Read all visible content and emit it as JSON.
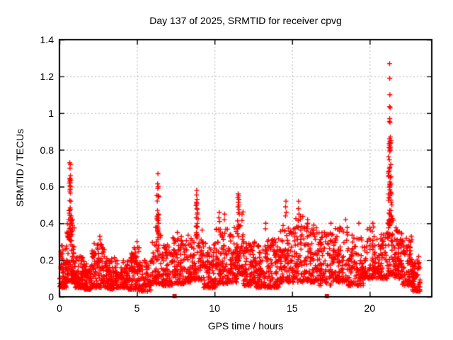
{
  "chart_data": {
    "type": "scatter",
    "title": "Day 137 of 2025, SRMTID for receiver cpvg",
    "xlabel": "GPS time / hours",
    "ylabel": "SRMTID / TECUs",
    "xlim": [
      0,
      24
    ],
    "ylim": [
      0,
      1.4
    ],
    "xtick_values": [
      0,
      5,
      10,
      15,
      20
    ],
    "xtick_labels": [
      "0",
      "5",
      "10",
      "15",
      "20"
    ],
    "ytick_values": [
      0,
      0.2,
      0.4,
      0.6,
      0.8,
      1.0,
      1.2,
      1.4
    ],
    "ytick_labels": [
      "0",
      "0.2",
      "0.4",
      "0.6",
      "0.8",
      "1",
      "1.2",
      "1.4"
    ],
    "grid": true,
    "grid_style": "dotted",
    "legend": null,
    "colors": {
      "marker": "#ff0000",
      "grid": "#b3b3b3",
      "axis": "#000000",
      "text": "#000000",
      "background": "#ffffff"
    },
    "seed": 137,
    "series": [
      {
        "name": "srmtid_plus_markers",
        "marker": "plus",
        "marker_size": 7,
        "clusters": [
          [
            0.02,
            0.45,
            70,
            0.05,
            0.28
          ],
          [
            0.45,
            0.95,
            85,
            0.08,
            0.42
          ],
          [
            0.62,
            0.78,
            22,
            0.3,
            0.62
          ],
          [
            0.95,
            1.6,
            90,
            0.05,
            0.22
          ],
          [
            1.6,
            2.1,
            70,
            0.04,
            0.18
          ],
          [
            2.1,
            2.95,
            100,
            0.05,
            0.3
          ],
          [
            2.95,
            3.6,
            80,
            0.04,
            0.22
          ],
          [
            3.6,
            4.4,
            90,
            0.05,
            0.2
          ],
          [
            4.4,
            5.15,
            90,
            0.04,
            0.27
          ],
          [
            5.15,
            5.9,
            70,
            0.03,
            0.2
          ],
          [
            5.9,
            6.55,
            60,
            0.07,
            0.38
          ],
          [
            6.28,
            6.42,
            16,
            0.3,
            0.56
          ],
          [
            6.55,
            7.3,
            80,
            0.06,
            0.3
          ],
          [
            7.3,
            8.15,
            90,
            0.07,
            0.33
          ],
          [
            8.15,
            8.7,
            60,
            0.08,
            0.35
          ],
          [
            8.7,
            9.3,
            60,
            0.09,
            0.44
          ],
          [
            8.8,
            8.92,
            13,
            0.33,
            0.52
          ],
          [
            9.3,
            10.1,
            90,
            0.05,
            0.3
          ],
          [
            10.1,
            10.9,
            90,
            0.07,
            0.38
          ],
          [
            10.9,
            11.45,
            70,
            0.08,
            0.4
          ],
          [
            11.45,
            11.85,
            55,
            0.12,
            0.48
          ],
          [
            11.85,
            12.6,
            90,
            0.06,
            0.3
          ],
          [
            12.6,
            13.4,
            90,
            0.05,
            0.28
          ],
          [
            13.4,
            14.2,
            90,
            0.05,
            0.32
          ],
          [
            14.2,
            14.9,
            80,
            0.08,
            0.4
          ],
          [
            14.9,
            15.7,
            80,
            0.08,
            0.44
          ],
          [
            15.7,
            16.6,
            100,
            0.08,
            0.4
          ],
          [
            16.6,
            17.6,
            100,
            0.06,
            0.35
          ],
          [
            17.6,
            18.6,
            100,
            0.08,
            0.38
          ],
          [
            18.6,
            19.6,
            100,
            0.06,
            0.35
          ],
          [
            19.6,
            20.6,
            100,
            0.1,
            0.38
          ],
          [
            20.6,
            21.15,
            60,
            0.1,
            0.35
          ],
          [
            21.18,
            21.38,
            40,
            0.4,
            0.88
          ],
          [
            21.15,
            21.6,
            55,
            0.12,
            0.45
          ],
          [
            21.6,
            22.1,
            70,
            0.1,
            0.38
          ],
          [
            22.1,
            22.75,
            80,
            0.06,
            0.33
          ],
          [
            22.75,
            23.25,
            70,
            0.03,
            0.22
          ]
        ],
        "points": [
          [
            0.66,
            0.73
          ],
          [
            0.7,
            0.72
          ],
          [
            0.68,
            0.7
          ],
          [
            0.71,
            0.66
          ],
          [
            0.67,
            0.645
          ],
          [
            0.69,
            0.64
          ],
          [
            0.72,
            0.635
          ],
          [
            0.66,
            0.63
          ],
          [
            0.7,
            0.62
          ],
          [
            0.68,
            0.605
          ],
          [
            0.71,
            0.6
          ],
          [
            0.69,
            0.585
          ],
          [
            0.67,
            0.575
          ],
          [
            0.7,
            0.565
          ],
          [
            0.73,
            0.52
          ],
          [
            0.62,
            0.47
          ],
          [
            0.64,
            0.455
          ],
          [
            0.76,
            0.44
          ],
          [
            0.6,
            0.42
          ],
          [
            0.78,
            0.4
          ],
          [
            2.6,
            0.33
          ],
          [
            2.62,
            0.31
          ],
          [
            5.0,
            0.3
          ],
          [
            6.35,
            0.67
          ],
          [
            6.33,
            0.615
          ],
          [
            6.37,
            0.6
          ],
          [
            6.34,
            0.59
          ],
          [
            6.36,
            0.55
          ],
          [
            6.32,
            0.47
          ],
          [
            6.38,
            0.45
          ],
          [
            6.3,
            0.42
          ],
          [
            6.4,
            0.4
          ],
          [
            6.28,
            0.38
          ],
          [
            7.6,
            0.35
          ],
          [
            8.85,
            0.58
          ],
          [
            8.84,
            0.555
          ],
          [
            8.87,
            0.53
          ],
          [
            8.83,
            0.5
          ],
          [
            8.86,
            0.48
          ],
          [
            8.88,
            0.45
          ],
          [
            8.82,
            0.43
          ],
          [
            10.3,
            0.46
          ],
          [
            10.28,
            0.43
          ],
          [
            10.32,
            0.41
          ],
          [
            10.65,
            0.45
          ],
          [
            10.63,
            0.42
          ],
          [
            11.52,
            0.56
          ],
          [
            11.55,
            0.55
          ],
          [
            11.5,
            0.54
          ],
          [
            11.57,
            0.53
          ],
          [
            11.53,
            0.515
          ],
          [
            11.56,
            0.5
          ],
          [
            11.51,
            0.49
          ],
          [
            11.58,
            0.475
          ],
          [
            11.54,
            0.46
          ],
          [
            11.59,
            0.45
          ],
          [
            13.3,
            0.4
          ],
          [
            13.28,
            0.37
          ],
          [
            14.6,
            0.52
          ],
          [
            14.58,
            0.49
          ],
          [
            14.62,
            0.46
          ],
          [
            14.57,
            0.44
          ],
          [
            15.42,
            0.52
          ],
          [
            15.4,
            0.48
          ],
          [
            15.44,
            0.45
          ],
          [
            16.0,
            0.42
          ],
          [
            17.5,
            0.4
          ],
          [
            18.45,
            0.42
          ],
          [
            19.3,
            0.4
          ],
          [
            20.2,
            0.4
          ],
          [
            20.25,
            0.38
          ],
          [
            21.28,
            1.27
          ],
          [
            21.29,
            1.19
          ],
          [
            21.3,
            1.1
          ],
          [
            21.28,
            1.035
          ],
          [
            21.32,
            1.03
          ],
          [
            21.29,
            0.97
          ],
          [
            21.27,
            0.955
          ],
          [
            21.31,
            0.95
          ],
          [
            21.33,
            0.87
          ],
          [
            21.29,
            0.86
          ],
          [
            21.35,
            0.85
          ],
          [
            21.3,
            0.845
          ],
          [
            21.32,
            0.835
          ],
          [
            21.28,
            0.825
          ],
          [
            21.34,
            0.815
          ],
          [
            21.31,
            0.805
          ],
          [
            21.29,
            0.79
          ],
          [
            21.36,
            0.72
          ],
          [
            21.3,
            0.705
          ],
          [
            21.26,
            0.685
          ],
          [
            21.38,
            0.655
          ],
          [
            21.32,
            0.65
          ],
          [
            21.34,
            0.57
          ],
          [
            21.39,
            0.56
          ],
          [
            21.31,
            0.55
          ],
          [
            21.43,
            0.5
          ],
          [
            21.37,
            0.47
          ],
          [
            21.41,
            0.44
          ],
          [
            22.68,
            0.33
          ],
          [
            22.72,
            0.31
          ],
          [
            22.65,
            0.3
          ]
        ]
      },
      {
        "name": "baseline_square_markers",
        "marker": "square",
        "marker_size": 6,
        "points": [
          [
            7.42,
            0
          ],
          [
            17.24,
            0
          ]
        ]
      }
    ]
  }
}
